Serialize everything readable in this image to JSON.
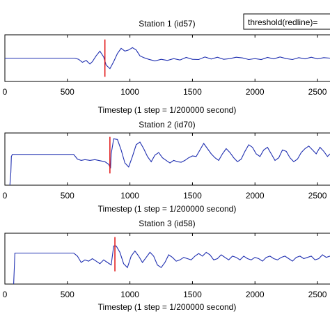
{
  "legend": {
    "text": "threshold(redline)="
  },
  "colors": {
    "signal": "#1f2fb0",
    "threshold": "#e01010",
    "axis": "#000000"
  },
  "chart_data": [
    {
      "type": "line",
      "title": "Station 1 (id57)",
      "xlabel": "Timestep (1 step = 1/200000 second)",
      "ylabel": "",
      "xlim": [
        0,
        2600
      ],
      "ylim": [
        -1,
        1
      ],
      "xticks": [
        "0",
        "500",
        "1000",
        "1500",
        "2000",
        "2500"
      ],
      "xtick_values": [
        0,
        500,
        1000,
        1500,
        2000,
        2500
      ],
      "threshold_x": 800,
      "threshold_ylim": [
        -0.8,
        0.8
      ],
      "series": [
        {
          "x": [
            0,
            560,
            590,
            620,
            650,
            680,
            700,
            730,
            760,
            790,
            810,
            840,
            870,
            900,
            930,
            960,
            990,
            1020,
            1050,
            1080,
            1110,
            1150,
            1200,
            1250,
            1300,
            1350,
            1400,
            1450,
            1500,
            1550,
            1600,
            1650,
            1700,
            1750,
            1800,
            1850,
            1900,
            1950,
            2000,
            2050,
            2100,
            2150,
            2200,
            2250,
            2300,
            2350,
            2400,
            2450,
            2500,
            2550,
            2600
          ],
          "y": [
            0,
            0,
            -0.05,
            -0.18,
            -0.1,
            -0.25,
            -0.15,
            0.1,
            0.3,
            0.05,
            -0.3,
            -0.45,
            -0.15,
            0.2,
            0.42,
            0.3,
            0.35,
            0.45,
            0.35,
            0.1,
            0.02,
            -0.05,
            -0.12,
            -0.05,
            -0.1,
            -0.02,
            -0.08,
            0.03,
            -0.05,
            -0.06,
            0.05,
            -0.04,
            0.04,
            -0.05,
            -0.02,
            0.04,
            0.01,
            -0.06,
            -0.02,
            -0.06,
            0.03,
            -0.03,
            0.05,
            -0.02,
            -0.06,
            0.02,
            -0.03,
            0.04,
            -0.03,
            0.02,
            0
          ]
        }
      ]
    },
    {
      "type": "line",
      "title": "Station 2 (id70)",
      "xlabel": "Timestep (1 step = 1/200000 second)",
      "ylabel": "",
      "xlim": [
        0,
        2600
      ],
      "ylim": [
        -1,
        1
      ],
      "xticks": [
        "0",
        "500",
        "1000",
        "1500",
        "2000",
        "2500"
      ],
      "xtick_values": [
        0,
        500,
        1000,
        1500,
        2000,
        2500
      ],
      "threshold_x": 840,
      "threshold_ylim": [
        -0.55,
        0.85
      ],
      "series": [
        {
          "x": [
            40,
            48,
            52,
            60,
            550,
            580,
            610,
            640,
            680,
            720,
            760,
            800,
            830,
            845,
            850,
            870,
            900,
            930,
            960,
            990,
            1020,
            1050,
            1080,
            1110,
            1140,
            1170,
            1200,
            1230,
            1260,
            1290,
            1320,
            1350,
            1380,
            1410,
            1440,
            1470,
            1500,
            1530,
            1560,
            1590,
            1620,
            1650,
            1680,
            1710,
            1740,
            1770,
            1800,
            1830,
            1860,
            1890,
            1920,
            1950,
            1980,
            2010,
            2040,
            2070,
            2100,
            2130,
            2160,
            2190,
            2220,
            2250,
            2280,
            2310,
            2340,
            2370,
            2400,
            2430,
            2460,
            2490,
            2520,
            2550,
            2580,
            2600
          ],
          "y": [
            -1,
            -0.5,
            0.1,
            0.18,
            0.18,
            0.0,
            -0.05,
            -0.02,
            -0.05,
            -0.02,
            -0.06,
            -0.1,
            -0.2,
            -0.35,
            0.2,
            0.78,
            0.75,
            0.35,
            -0.15,
            -0.3,
            0.1,
            0.55,
            0.65,
            0.4,
            0.1,
            -0.1,
            0.15,
            0.25,
            0.05,
            -0.05,
            -0.15,
            -0.05,
            -0.1,
            -0.12,
            -0.05,
            0.05,
            0.12,
            0.1,
            0.35,
            0.6,
            0.4,
            0.2,
            0.05,
            -0.05,
            0.2,
            0.4,
            0.25,
            0.05,
            -0.1,
            0.0,
            0.3,
            0.55,
            0.45,
            0.2,
            0.1,
            0.35,
            0.45,
            0.2,
            -0.05,
            0.05,
            0.35,
            0.3,
            0.05,
            -0.1,
            0.0,
            0.25,
            0.4,
            0.5,
            0.35,
            0.2,
            0.45,
            0.3,
            0.1,
            0.2
          ]
        }
      ]
    },
    {
      "type": "line",
      "title": "Station 3 (id58)",
      "xlabel": "Timestep (1 step = 1/200000 second)",
      "ylabel": "",
      "xlim": [
        0,
        2600
      ],
      "ylim": [
        -1,
        1
      ],
      "xticks": [
        "0",
        "500",
        "1000",
        "1500",
        "2000",
        "2500"
      ],
      "xtick_values": [
        0,
        500,
        1000,
        1500,
        2000,
        2500
      ],
      "threshold_x": 880,
      "threshold_ylim": [
        -0.5,
        0.85
      ],
      "series": [
        {
          "x": [
            70,
            80,
            550,
            580,
            610,
            640,
            670,
            700,
            730,
            760,
            790,
            820,
            850,
            870,
            890,
            920,
            950,
            980,
            1010,
            1040,
            1070,
            1100,
            1130,
            1160,
            1190,
            1220,
            1250,
            1280,
            1310,
            1340,
            1370,
            1400,
            1430,
            1460,
            1490,
            1520,
            1550,
            1580,
            1610,
            1640,
            1670,
            1700,
            1730,
            1760,
            1790,
            1820,
            1850,
            1880,
            1910,
            1940,
            1970,
            2000,
            2030,
            2060,
            2090,
            2120,
            2150,
            2180,
            2210,
            2240,
            2270,
            2300,
            2330,
            2360,
            2390,
            2420,
            2450,
            2480,
            2510,
            2540,
            2570,
            2600
          ],
          "y": [
            -1,
            0.22,
            0.22,
            0.1,
            -0.15,
            -0.05,
            -0.1,
            0.0,
            -0.1,
            -0.2,
            -0.05,
            -0.15,
            -0.25,
            0.5,
            0.5,
            0.25,
            -0.2,
            -0.35,
            0.1,
            0.3,
            0.1,
            -0.15,
            0.05,
            0.25,
            0.1,
            -0.25,
            -0.35,
            -0.15,
            0.15,
            0.05,
            -0.1,
            -0.05,
            0.05,
            0.0,
            -0.05,
            0.1,
            0.2,
            0.1,
            0.25,
            0.15,
            -0.05,
            0.0,
            0.15,
            0.05,
            -0.05,
            0.1,
            0.05,
            -0.05,
            0.1,
            0.0,
            -0.05,
            0.05,
            0.0,
            -0.1,
            0.05,
            0.1,
            0.0,
            -0.05,
            0.05,
            0.1,
            0.0,
            -0.1,
            0.05,
            0.1,
            0.0,
            0.05,
            0.1,
            -0.05,
            0.0,
            0.15,
            0.05,
            0.1
          ]
        }
      ]
    }
  ]
}
